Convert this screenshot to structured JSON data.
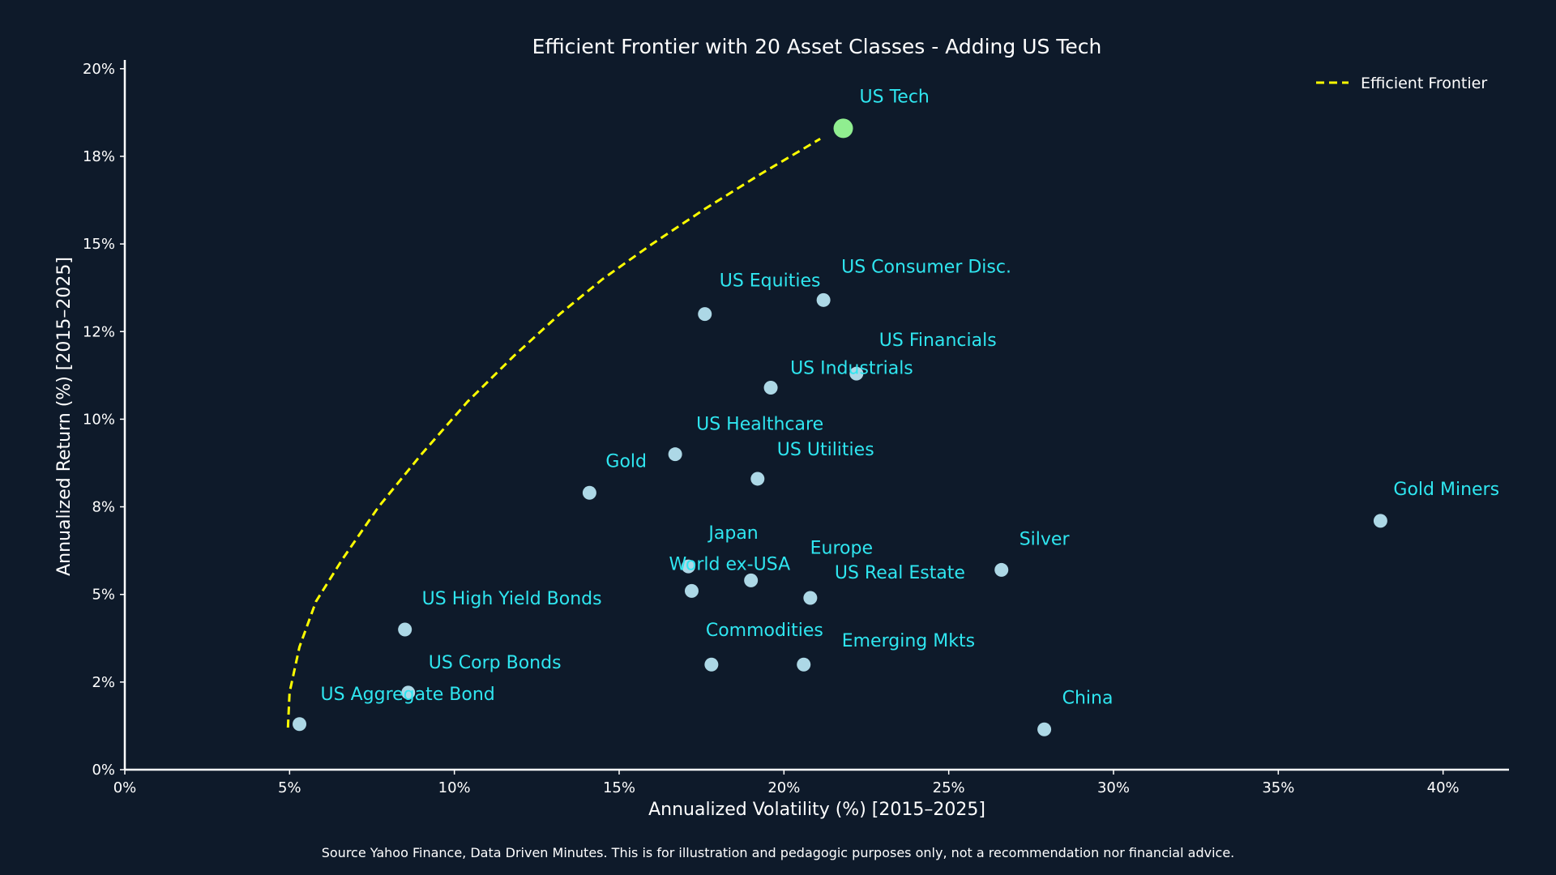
{
  "chart_data": {
    "type": "scatter",
    "title": "Efficient Frontier with 20 Asset Classes - Adding US Tech",
    "xlabel": "Annualized Volatility (%) [2015–2025]",
    "ylabel": "Annualized Return (%) [2015–2025]",
    "xlim": [
      0,
      42
    ],
    "ylim": [
      0,
      20.25
    ],
    "x_ticks": [
      0,
      5,
      10,
      15,
      20,
      25,
      30,
      35,
      40
    ],
    "x_tick_labels": [
      "0%",
      "5%",
      "10%",
      "15%",
      "20%",
      "25%",
      "30%",
      "35%",
      "40%"
    ],
    "y_ticks": [
      0,
      2.5,
      5,
      7.5,
      10,
      12.5,
      15,
      17.5,
      20
    ],
    "y_tick_labels": [
      "0%",
      "2%",
      "5%",
      "8%",
      "10%",
      "12%",
      "15%",
      "18%",
      "20%"
    ],
    "grid": false,
    "legend": {
      "position": "top-right",
      "entries": [
        "Efficient Frontier"
      ]
    },
    "colors": {
      "background": "#0e1a2a",
      "point": "#add8e6",
      "highlight": "#90ee90",
      "label": "#2fe6f0",
      "frontier": "#ffff00"
    },
    "points": [
      {
        "name": "US Tech",
        "x": 21.8,
        "y": 18.3,
        "highlight": true
      },
      {
        "name": "US Consumer Disc.",
        "x": 21.2,
        "y": 13.4
      },
      {
        "name": "US Equities",
        "x": 17.6,
        "y": 13.0
      },
      {
        "name": "US Financials",
        "x": 22.2,
        "y": 11.3
      },
      {
        "name": "US Industrials",
        "x": 19.6,
        "y": 10.9
      },
      {
        "name": "US Healthcare",
        "x": 16.7,
        "y": 9.0
      },
      {
        "name": "US Utilities",
        "x": 19.2,
        "y": 8.3
      },
      {
        "name": "Gold",
        "x": 14.1,
        "y": 7.9
      },
      {
        "name": "Gold Miners",
        "x": 38.1,
        "y": 7.1
      },
      {
        "name": "Japan",
        "x": 17.1,
        "y": 5.8
      },
      {
        "name": "World ex-USA",
        "x": 17.2,
        "y": 5.1
      },
      {
        "name": "Europe",
        "x": 19.0,
        "y": 5.4
      },
      {
        "name": "Silver",
        "x": 26.6,
        "y": 5.7
      },
      {
        "name": "US Real Estate",
        "x": 20.8,
        "y": 4.9
      },
      {
        "name": "US High Yield Bonds",
        "x": 8.5,
        "y": 4.0
      },
      {
        "name": "Commodities",
        "x": 17.8,
        "y": 3.0
      },
      {
        "name": "Emerging Mkts",
        "x": 20.6,
        "y": 3.0
      },
      {
        "name": "US Corp Bonds",
        "x": 8.6,
        "y": 2.2
      },
      {
        "name": "US Aggregate Bond",
        "x": 5.3,
        "y": 1.3
      },
      {
        "name": "China",
        "x": 27.9,
        "y": 1.15
      }
    ],
    "frontier": {
      "name": "Efficient Frontier",
      "x": [
        4.95,
        5.0,
        5.3,
        5.8,
        6.6,
        7.7,
        9.0,
        10.4,
        11.8,
        13.2,
        14.5,
        16.0,
        17.6,
        19.3,
        21.1
      ],
      "y": [
        1.2,
        2.2,
        3.5,
        4.8,
        6.0,
        7.5,
        9.0,
        10.5,
        11.8,
        13.0,
        14.0,
        15.0,
        16.0,
        17.0,
        18.0
      ]
    },
    "footnote": "Source Yahoo Finance, Data Driven Minutes. This is for illustration and pedagogic purposes only, not a recommendation nor financial advice."
  }
}
